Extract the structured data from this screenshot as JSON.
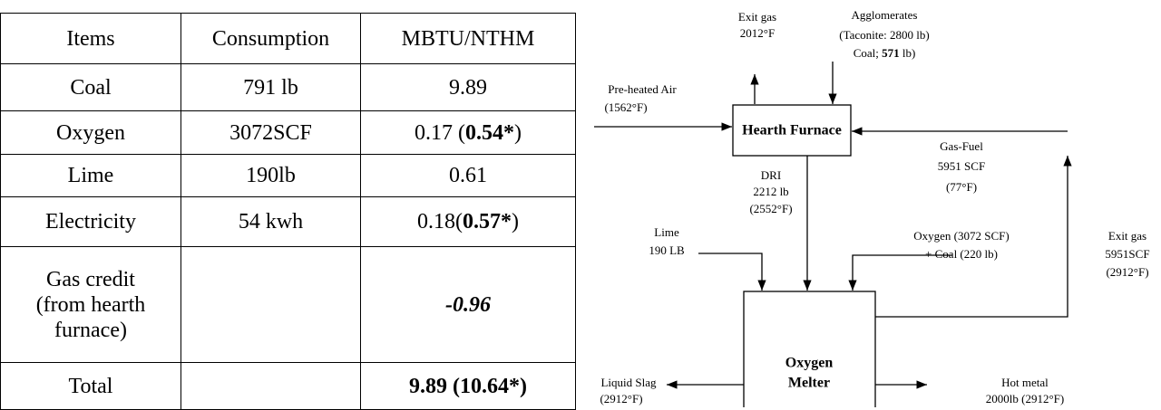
{
  "table": {
    "header": [
      "Items",
      "Consumption",
      "MBTU/NTHM"
    ],
    "rows": [
      [
        "Coal",
        "791 lb",
        [
          {
            "text": "9.89"
          }
        ]
      ],
      [
        "Oxygen",
        "3072SCF",
        [
          {
            "text": "0.17 ("
          },
          {
            "text": "0.54*",
            "bold": true
          },
          {
            "text": ")"
          }
        ]
      ],
      [
        "Lime",
        "190lb",
        [
          {
            "text": "0.61"
          }
        ]
      ],
      [
        "Electricity",
        "54 kwh",
        [
          {
            "text": "0.18("
          },
          {
            "text": "0.57*",
            "bold": true
          },
          {
            "text": ")"
          }
        ]
      ],
      [
        [
          "Gas credit",
          "(from hearth",
          "furnace)"
        ],
        "",
        [
          {
            "text": "-0.96",
            "bold": true,
            "italic": true
          }
        ]
      ],
      [
        "Total",
        "",
        [
          {
            "text": "9.89 (10.64*)",
            "bold": true
          }
        ]
      ]
    ]
  },
  "diagram": {
    "exit_gas_top": [
      "Exit gas",
      "2012°F"
    ],
    "agglomerates": [
      "Agglomerates",
      "(Taconite: 2800 lb)",
      "Coal; ",
      "571",
      " lb)"
    ],
    "preheated_air": [
      "Pre-heated Air",
      "(1562°F)"
    ],
    "hearth_furnace": "Hearth Furnace",
    "gas_fuel": [
      "Gas-Fuel",
      "5951 SCF",
      "(77°F)"
    ],
    "dri": [
      "DRI",
      "2212 lb",
      "(2552°F)"
    ],
    "lime": [
      "Lime",
      "190 LB"
    ],
    "oxygen_coal": [
      "Oxygen (3072 SCF)",
      "+ Coal (220 lb)"
    ],
    "exit_gas_right": [
      "Exit gas",
      "5951SCF",
      "(2912°F)"
    ],
    "melter": [
      "Oxygen",
      "Melter"
    ],
    "liquid_slag": [
      "Liquid Slag",
      "(2912°F)"
    ],
    "hot_metal": [
      "Hot metal",
      "2000lb (2912°F)"
    ]
  }
}
